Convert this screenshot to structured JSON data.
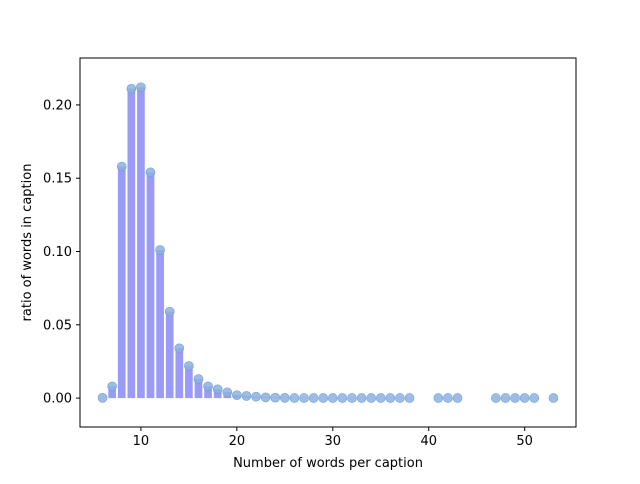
{
  "chart_data": {
    "type": "bar",
    "title": "",
    "xlabel": "Number of words per caption",
    "ylabel": "ratio of words in caption",
    "xlim": [
      3.65,
      55.35
    ],
    "ylim": [
      -0.0197,
      0.232
    ],
    "xticks": [
      10,
      20,
      30,
      40,
      50
    ],
    "xtick_labels": [
      "10",
      "20",
      "30",
      "40",
      "50"
    ],
    "yticks": [
      0.0,
      0.05,
      0.1,
      0.15,
      0.2
    ],
    "ytick_labels": [
      "0.00",
      "0.05",
      "0.10",
      "0.15",
      "0.20"
    ],
    "grid": false,
    "legend": "none",
    "bar_color": "#9a9af8",
    "marker_color": "#8cb2e0",
    "marker_edge_color": "#6f9fd6",
    "series": [
      {
        "kind": "bar",
        "x": [
          6,
          7,
          8,
          9,
          10,
          11,
          12,
          13,
          14,
          15,
          16,
          17,
          18,
          19,
          20,
          21,
          22,
          23,
          24,
          25,
          26,
          27,
          28,
          29,
          30,
          31,
          32,
          33,
          34,
          35,
          36,
          37,
          38,
          41,
          42,
          43,
          47,
          48,
          49,
          50,
          51,
          53
        ],
        "values": [
          0.0002,
          0.008,
          0.158,
          0.211,
          0.212,
          0.154,
          0.101,
          0.059,
          0.034,
          0.022,
          0.013,
          0.008,
          0.006,
          0.004,
          0.002,
          0.0015,
          0.001,
          0.0005,
          0.0003,
          0.0002,
          0.0001,
          0.0001,
          0.0001,
          0.0001,
          0.0001,
          0.0001,
          0.0001,
          0.0001,
          0.0001,
          0.0001,
          0.0001,
          0.0001,
          0.0001,
          0.0001,
          0.0001,
          0.0001,
          0.0001,
          0.0001,
          0.0001,
          0.0001,
          0.0001,
          0.0001
        ]
      },
      {
        "kind": "scatter",
        "x": [
          6,
          7,
          8,
          9,
          10,
          11,
          12,
          13,
          14,
          15,
          16,
          17,
          18,
          19,
          20,
          21,
          22,
          23,
          24,
          25,
          26,
          27,
          28,
          29,
          30,
          31,
          32,
          33,
          34,
          35,
          36,
          37,
          38,
          41,
          42,
          43,
          47,
          48,
          49,
          50,
          51,
          53
        ],
        "values": [
          0.0002,
          0.008,
          0.158,
          0.211,
          0.212,
          0.154,
          0.101,
          0.059,
          0.034,
          0.022,
          0.013,
          0.008,
          0.006,
          0.004,
          0.002,
          0.0015,
          0.001,
          0.0005,
          0.0003,
          0.0002,
          0.0001,
          0.0001,
          0.0001,
          0.0001,
          0.0001,
          0.0001,
          0.0001,
          0.0001,
          0.0001,
          0.0001,
          0.0001,
          0.0001,
          0.0001,
          0.0001,
          0.0001,
          0.0001,
          0.0001,
          0.0001,
          0.0001,
          0.0001,
          0.0001,
          0.0001
        ]
      }
    ]
  }
}
